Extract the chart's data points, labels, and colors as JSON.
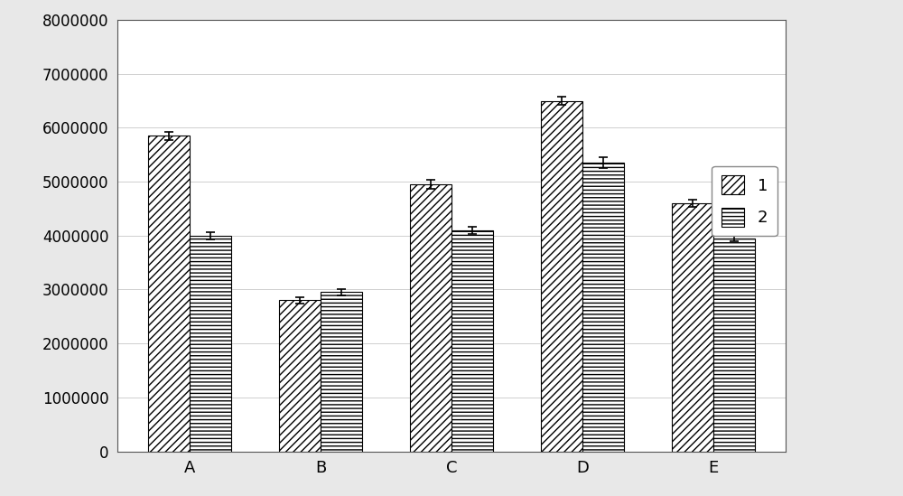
{
  "categories": [
    "A",
    "B",
    "C",
    "D",
    "E"
  ],
  "series1_values": [
    5850000,
    2800000,
    4950000,
    6500000,
    4600000
  ],
  "series2_values": [
    4000000,
    2950000,
    4100000,
    5350000,
    3950000
  ],
  "series1_errors": [
    80000,
    55000,
    80000,
    80000,
    65000
  ],
  "series2_errors": [
    65000,
    55000,
    65000,
    100000,
    60000
  ],
  "series1_label": "1",
  "series2_label": "2",
  "ylim": [
    0,
    8000000
  ],
  "yticks": [
    0,
    1000000,
    2000000,
    3000000,
    4000000,
    5000000,
    6000000,
    7000000,
    8000000
  ],
  "bar_width": 0.32,
  "outer_bg_color": "#e8e8e8",
  "plot_bg_color": "#ffffff",
  "grid_color": "#c8c8c8",
  "bar_edge_color": "#000000",
  "hatch1": "////",
  "hatch2": "----",
  "font_size": 13,
  "tick_font_size": 12,
  "legend_font_size": 13,
  "figsize": [
    10.0,
    5.49
  ],
  "dpi": 100
}
